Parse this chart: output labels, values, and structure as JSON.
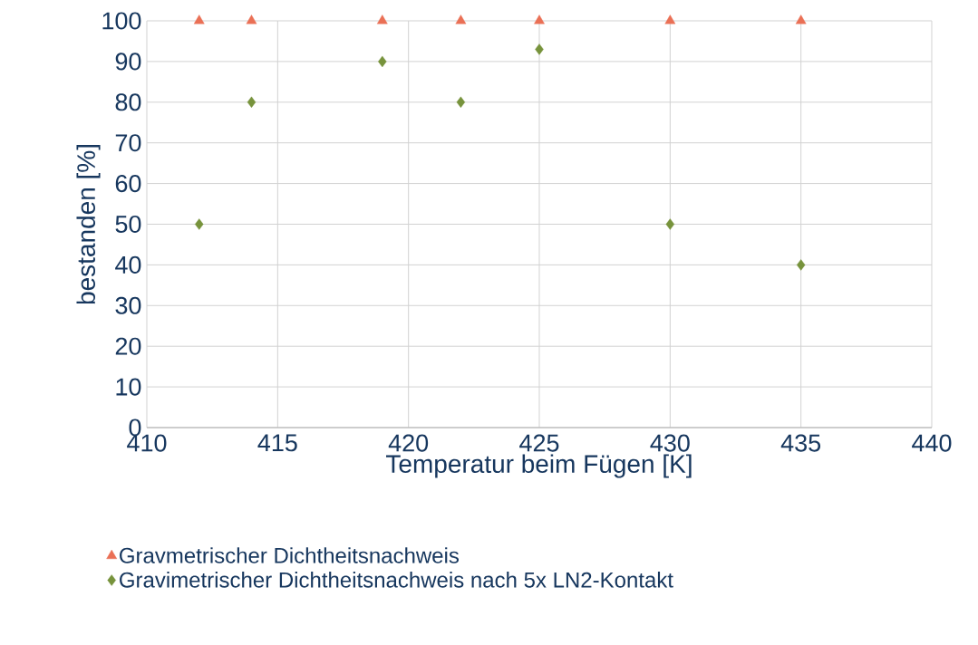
{
  "chart_data": {
    "type": "scatter",
    "xlabel": "Temperatur beim Fügen [K]",
    "ylabel": "bestanden [%]",
    "xlim": [
      410,
      440
    ],
    "ylim": [
      0,
      100
    ],
    "xticks": [
      410,
      415,
      420,
      425,
      430,
      435,
      440
    ],
    "yticks": [
      0,
      10,
      20,
      30,
      40,
      50,
      60,
      70,
      80,
      90,
      100
    ],
    "grid": true,
    "legend": "bottom",
    "series": [
      {
        "name": "Gravmetrischer Dichtheitsnachweis",
        "color": "#ea7055",
        "marker": "triangle",
        "x": [
          412,
          414,
          419,
          422,
          425,
          430,
          435
        ],
        "values": [
          100,
          100,
          100,
          100,
          100,
          100,
          100
        ]
      },
      {
        "name": "Gravimetrischer Dichtheitsnachweis nach 5x LN2-Kontakt",
        "color": "#77933c",
        "marker": "diamond",
        "x": [
          412,
          414,
          419,
          422,
          425,
          430,
          435
        ],
        "values": [
          50,
          80,
          90,
          80,
          93,
          50,
          40
        ]
      }
    ]
  }
}
